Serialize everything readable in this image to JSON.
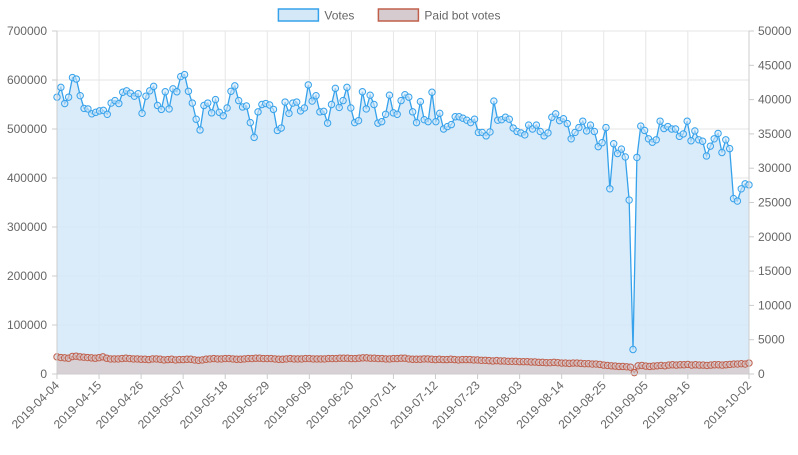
{
  "chart_data": {
    "type": "line",
    "title": "",
    "legend_placement": "top",
    "grid": true,
    "series": [
      {
        "name": "Votes",
        "axis": "left",
        "fill": true,
        "color": "#36a2eb",
        "fill_color": "#d4e8f8",
        "values": [
          565000,
          585000,
          552000,
          565000,
          605000,
          602000,
          568000,
          542000,
          541000,
          531000,
          534000,
          537000,
          538000,
          530000,
          553000,
          558000,
          552000,
          575000,
          578000,
          573000,
          567000,
          572000,
          532000,
          567000,
          578000,
          587000,
          548000,
          540000,
          576000,
          541000,
          582000,
          576000,
          607000,
          611000,
          577000,
          553000,
          520000,
          498000,
          548000,
          553000,
          533000,
          560000,
          534000,
          527000,
          543000,
          577000,
          588000,
          558000,
          545000,
          547000,
          513000,
          483000,
          535000,
          550000,
          552000,
          549000,
          540000,
          497000,
          502000,
          555000,
          532000,
          553000,
          555000,
          537000,
          543000,
          590000,
          557000,
          568000,
          535000,
          536000,
          512000,
          550000,
          583000,
          544000,
          558000,
          585000,
          543000,
          513000,
          517000,
          576000,
          541000,
          569000,
          550000,
          512000,
          515000,
          530000,
          569000,
          533000,
          530000,
          558000,
          570000,
          565000,
          535000,
          513000,
          556000,
          519000,
          515000,
          575000,
          515000,
          532000,
          500000,
          505000,
          509000,
          525000,
          525000,
          522000,
          518000,
          513000,
          520000,
          493000,
          493000,
          486000,
          494000,
          557000,
          518000,
          519000,
          524000,
          520000,
          502000,
          495000,
          492000,
          488000,
          508000,
          500000,
          508000,
          495000,
          486000,
          492000,
          524000,
          531000,
          517000,
          521000,
          511000,
          480000,
          493000,
          503000,
          516000,
          496000,
          508000,
          495000,
          464000,
          472000,
          503000,
          378000,
          470000,
          450000,
          459000,
          443000,
          355000,
          50000,
          442000,
          506000,
          497000,
          480000,
          473000,
          478000,
          516000,
          501000,
          505000,
          500000,
          500000,
          485000,
          490000,
          516000,
          476000,
          496000,
          478000,
          475000,
          445000,
          465000,
          480000,
          491000,
          452000,
          478000,
          460000,
          358000,
          353000,
          378000,
          388000,
          386000
        ]
      },
      {
        "name": "Paid bot votes",
        "axis": "right",
        "fill": true,
        "color": "#c0604c",
        "fill_color": "#d6ccd0",
        "values": [
          2500,
          2400,
          2350,
          2300,
          2550,
          2600,
          2500,
          2450,
          2400,
          2350,
          2300,
          2380,
          2500,
          2300,
          2200,
          2200,
          2200,
          2250,
          2300,
          2250,
          2200,
          2200,
          2150,
          2150,
          2100,
          2200,
          2200,
          2150,
          2050,
          2100,
          2150,
          2050,
          2100,
          2100,
          2150,
          2150,
          2050,
          2000,
          2050,
          2150,
          2200,
          2250,
          2200,
          2200,
          2250,
          2250,
          2200,
          2150,
          2150,
          2200,
          2250,
          2250,
          2300,
          2300,
          2250,
          2250,
          2250,
          2200,
          2150,
          2150,
          2200,
          2250,
          2200,
          2200,
          2200,
          2250,
          2250,
          2200,
          2200,
          2200,
          2200,
          2250,
          2250,
          2250,
          2300,
          2300,
          2300,
          2250,
          2250,
          2300,
          2350,
          2350,
          2300,
          2300,
          2250,
          2250,
          2200,
          2200,
          2250,
          2250,
          2300,
          2300,
          2200,
          2150,
          2150,
          2150,
          2200,
          2200,
          2150,
          2100,
          2150,
          2100,
          2100,
          2150,
          2100,
          2050,
          2100,
          2100,
          2100,
          2050,
          2050,
          2000,
          2000,
          1950,
          1900,
          1950,
          1900,
          1900,
          1850,
          1850,
          1850,
          1800,
          1800,
          1800,
          1750,
          1750,
          1700,
          1700,
          1650,
          1650,
          1700,
          1650,
          1600,
          1600,
          1550,
          1600,
          1600,
          1550,
          1500,
          1500,
          1450,
          1450,
          1400,
          1300,
          1250,
          1200,
          1150,
          1100,
          1100,
          1050,
          1000,
          200,
          1200,
          1250,
          1150,
          1100,
          1150,
          1200,
          1250,
          1200,
          1300,
          1350,
          1300,
          1350,
          1350,
          1400,
          1300,
          1350,
          1300,
          1300,
          1250,
          1300,
          1350,
          1350,
          1300,
          1350,
          1400,
          1450,
          1450,
          1500,
          1450,
          1600
        ]
      }
    ],
    "x_start": "2019-04-04",
    "x_end": "2019-10-02",
    "x_tick_labels": [
      "2019-04-04",
      "2019-04-15",
      "2019-04-26",
      "2019-05-07",
      "2019-05-18",
      "2019-05-29",
      "2019-06-09",
      "2019-06-20",
      "2019-07-01",
      "2019-07-12",
      "2019-07-23",
      "2019-08-03",
      "2019-08-14",
      "2019-08-25",
      "2019-09-05",
      "2019-09-16",
      "2019-10-02"
    ],
    "y_left": {
      "min": 0,
      "max": 700000,
      "ticks": [
        0,
        100000,
        200000,
        300000,
        400000,
        500000,
        600000,
        700000
      ],
      "tick_labels": [
        "0",
        "100000",
        "200000",
        "300000",
        "400000",
        "500000",
        "600000",
        "700000"
      ]
    },
    "y_right": {
      "min": 0,
      "max": 50000,
      "ticks": [
        0,
        5000,
        10000,
        15000,
        20000,
        25000,
        30000,
        35000,
        40000,
        45000,
        50000
      ],
      "tick_labels": [
        "0",
        "5000",
        "10000",
        "15000",
        "20000",
        "25000",
        "30000",
        "35000",
        "40000",
        "45000",
        "50000"
      ]
    }
  }
}
